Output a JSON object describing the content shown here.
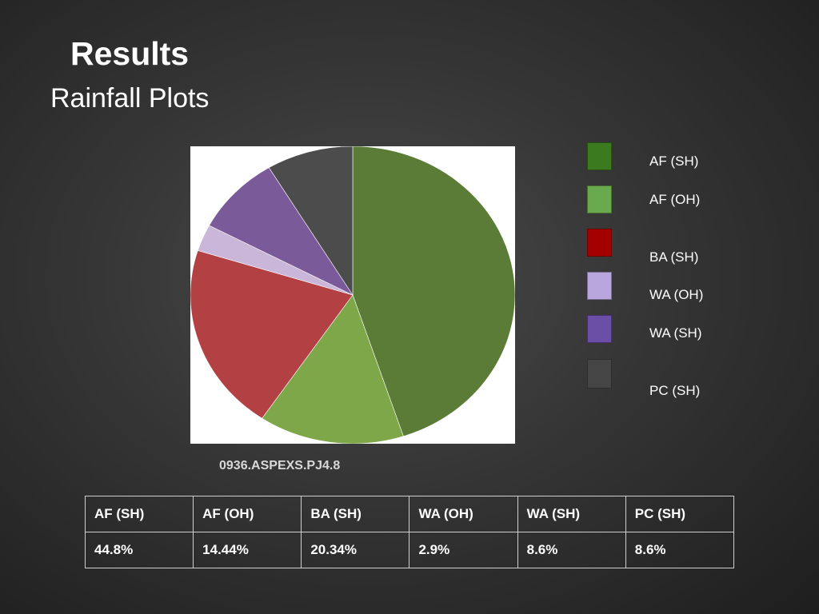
{
  "slide": {
    "title": "Results",
    "subtitle": "Rainfall Plots",
    "caption": "0936.ASPEXS.PJ4.8"
  },
  "chart_data": {
    "type": "pie",
    "title": "",
    "categories": [
      "AF (SH)",
      "AF (OH)",
      "BA (SH)",
      "WA (OH)",
      "WA (SH)",
      "PC (SH)"
    ],
    "values": [
      44.8,
      14.44,
      20.34,
      2.9,
      8.6,
      8.6
    ],
    "unit": "%",
    "slice_colors": [
      "#5a7c36",
      "#7ea74a",
      "#b34043",
      "#c9b6d9",
      "#7b5a9a",
      "#4c4c4c"
    ],
    "legend": {
      "placement": "right",
      "entries": [
        {
          "label": "AF (SH)",
          "color": "#3b7a1e"
        },
        {
          "label": "AF (OH)",
          "color": "#6aaa4e"
        },
        {
          "label": "BA (SH)",
          "color": "#a50000"
        },
        {
          "label": "WA (OH)",
          "color": "#b9a6dc"
        },
        {
          "label": "WA (SH)",
          "color": "#6a4ea8"
        },
        {
          "label": "PC (SH)",
          "color": "#454545"
        }
      ]
    }
  },
  "table": {
    "headers": [
      "AF (SH)",
      "AF (OH)",
      "BA (SH)",
      "WA (OH)",
      "WA (SH)",
      "PC (SH)"
    ],
    "values": [
      "44.8%",
      "14.44%",
      "20.34%",
      "2.9%",
      "8.6%",
      "8.6%"
    ]
  }
}
